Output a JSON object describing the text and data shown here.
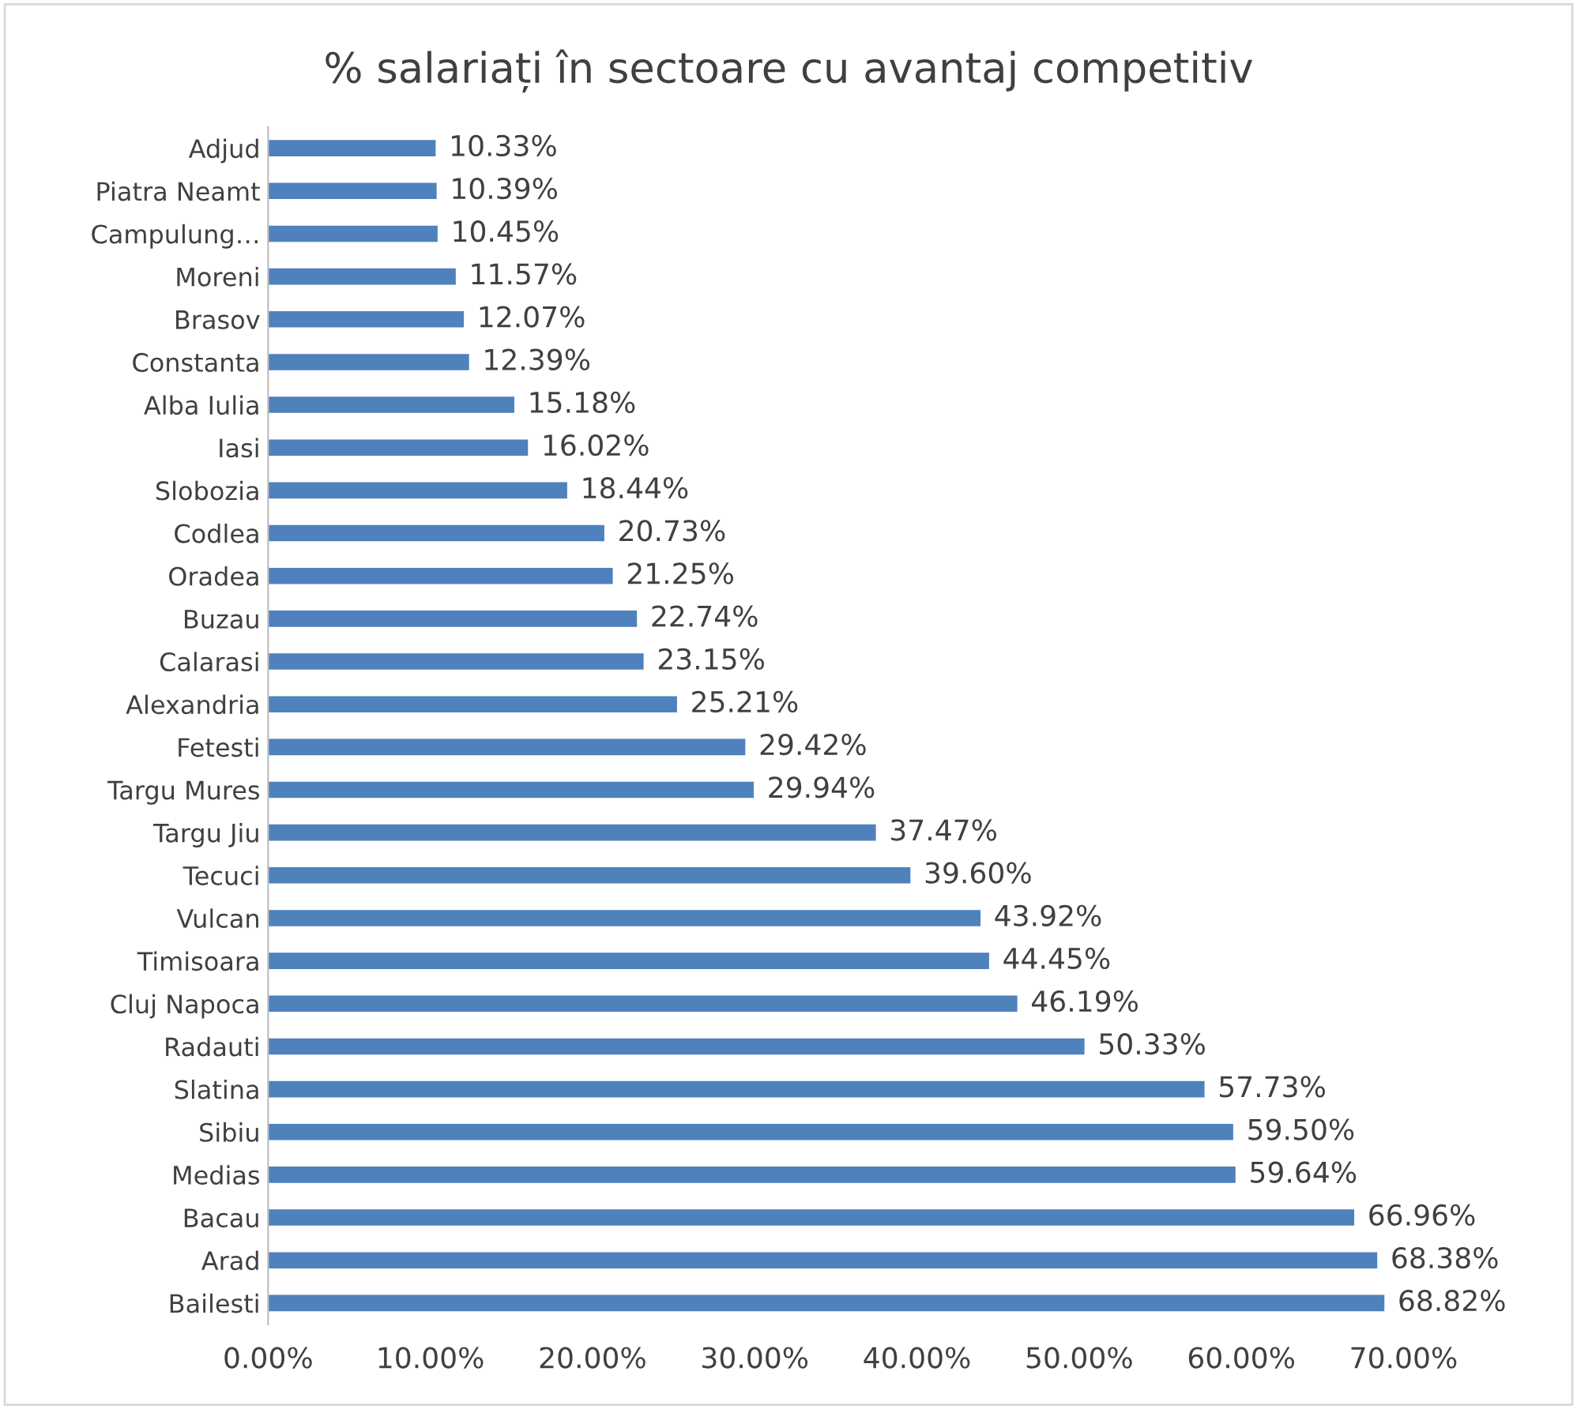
{
  "chart_data": {
    "type": "bar",
    "orientation": "horizontal",
    "title": "% salariați în sectoare cu avantaj competitiv",
    "categories": [
      "Adjud",
      "Piatra Neamt",
      "Campulung…",
      "Moreni",
      "Brasov",
      "Constanta",
      "Alba Iulia",
      "Iasi",
      "Slobozia",
      "Codlea",
      "Oradea",
      "Buzau",
      "Calarasi",
      "Alexandria",
      "Fetesti",
      "Targu Mures",
      "Targu Jiu",
      "Tecuci",
      "Vulcan",
      "Timisoara",
      "Cluj Napoca",
      "Radauti",
      "Slatina",
      "Sibiu",
      "Medias",
      "Bacau",
      "Arad",
      "Bailesti"
    ],
    "values": [
      10.33,
      10.39,
      10.45,
      11.57,
      12.07,
      12.39,
      15.18,
      16.02,
      18.44,
      20.73,
      21.25,
      22.74,
      23.15,
      25.21,
      29.42,
      29.94,
      37.47,
      39.6,
      43.92,
      44.45,
      46.19,
      50.33,
      57.73,
      59.5,
      59.64,
      66.96,
      68.38,
      68.82
    ],
    "value_labels": [
      "10.33%",
      "10.39%",
      "10.45%",
      "11.57%",
      "12.07%",
      "12.39%",
      "15.18%",
      "16.02%",
      "18.44%",
      "20.73%",
      "21.25%",
      "22.74%",
      "23.15%",
      "25.21%",
      "29.42%",
      "29.94%",
      "37.47%",
      "39.60%",
      "43.92%",
      "44.45%",
      "46.19%",
      "50.33%",
      "57.73%",
      "59.50%",
      "59.64%",
      "66.96%",
      "68.38%",
      "68.82%"
    ],
    "color": "#4f81bd",
    "xlim": [
      0,
      70
    ],
    "xticks": [
      {
        "value": 0,
        "label": "0.00%"
      },
      {
        "value": 10,
        "label": "10.00%"
      },
      {
        "value": 20,
        "label": "20.00%"
      },
      {
        "value": 30,
        "label": "30.00%"
      },
      {
        "value": 40,
        "label": "40.00%"
      },
      {
        "value": 50,
        "label": "50.00%"
      },
      {
        "value": 60,
        "label": "60.00%"
      },
      {
        "value": 70,
        "label": "70.00%"
      }
    ],
    "grid": false,
    "legend": false
  }
}
